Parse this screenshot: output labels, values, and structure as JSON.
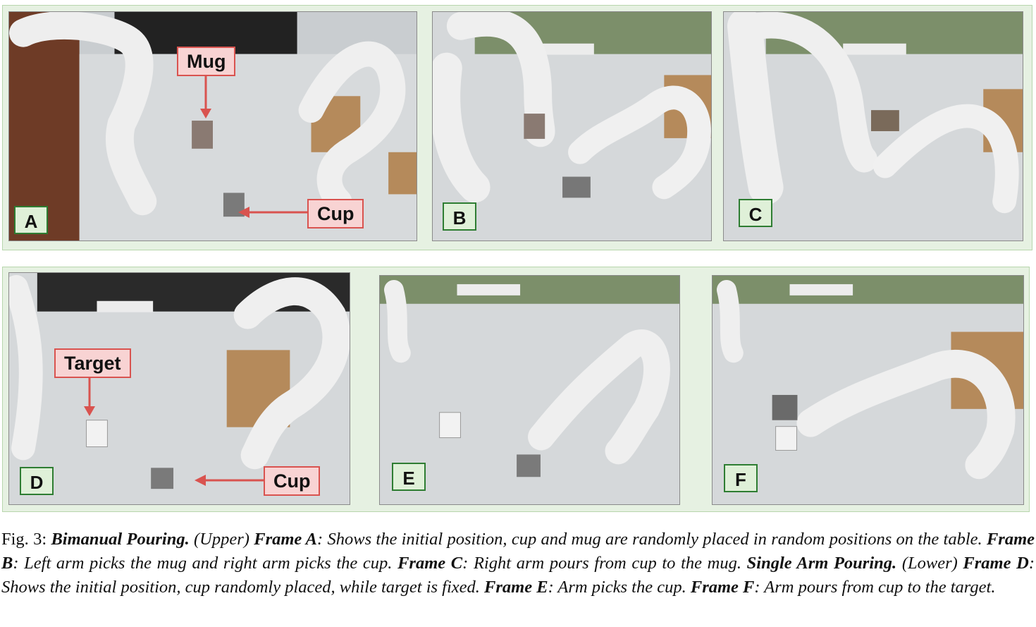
{
  "upper_panel": {
    "frames": [
      {
        "label": "A",
        "callouts": [
          "Mug",
          "Cup"
        ]
      },
      {
        "label": "B"
      },
      {
        "label": "C"
      }
    ]
  },
  "lower_panel": {
    "frames": [
      {
        "label": "D",
        "callouts": [
          "Target",
          "Cup"
        ]
      },
      {
        "label": "E"
      },
      {
        "label": "F"
      }
    ]
  },
  "caption": {
    "fig_label": "Fig. 3:",
    "title1": "Bimanual Pouring.",
    "upper": "(Upper)",
    "frameA": "Frame A",
    "frameA_text": ": Shows the initial position, cup and mug are randomly placed in random positions on the table.",
    "frameB": "Frame B",
    "frameB_text": ": Left arm picks the mug and right arm picks the cup.",
    "frameC": "Frame C",
    "frameC_text": ": Right arm pours from cup to the mug.",
    "title2": "Single Arm Pouring.",
    "lower": "(Lower)",
    "frameD": "Frame D",
    "frameD_text": ": Shows the initial position, cup randomly placed, while target is fixed.",
    "frameE": "Frame E",
    "frameE_text": ": Arm picks the cup.",
    "frameF": "Frame F",
    "frameF_text": ": Arm pours from cup to the target."
  }
}
